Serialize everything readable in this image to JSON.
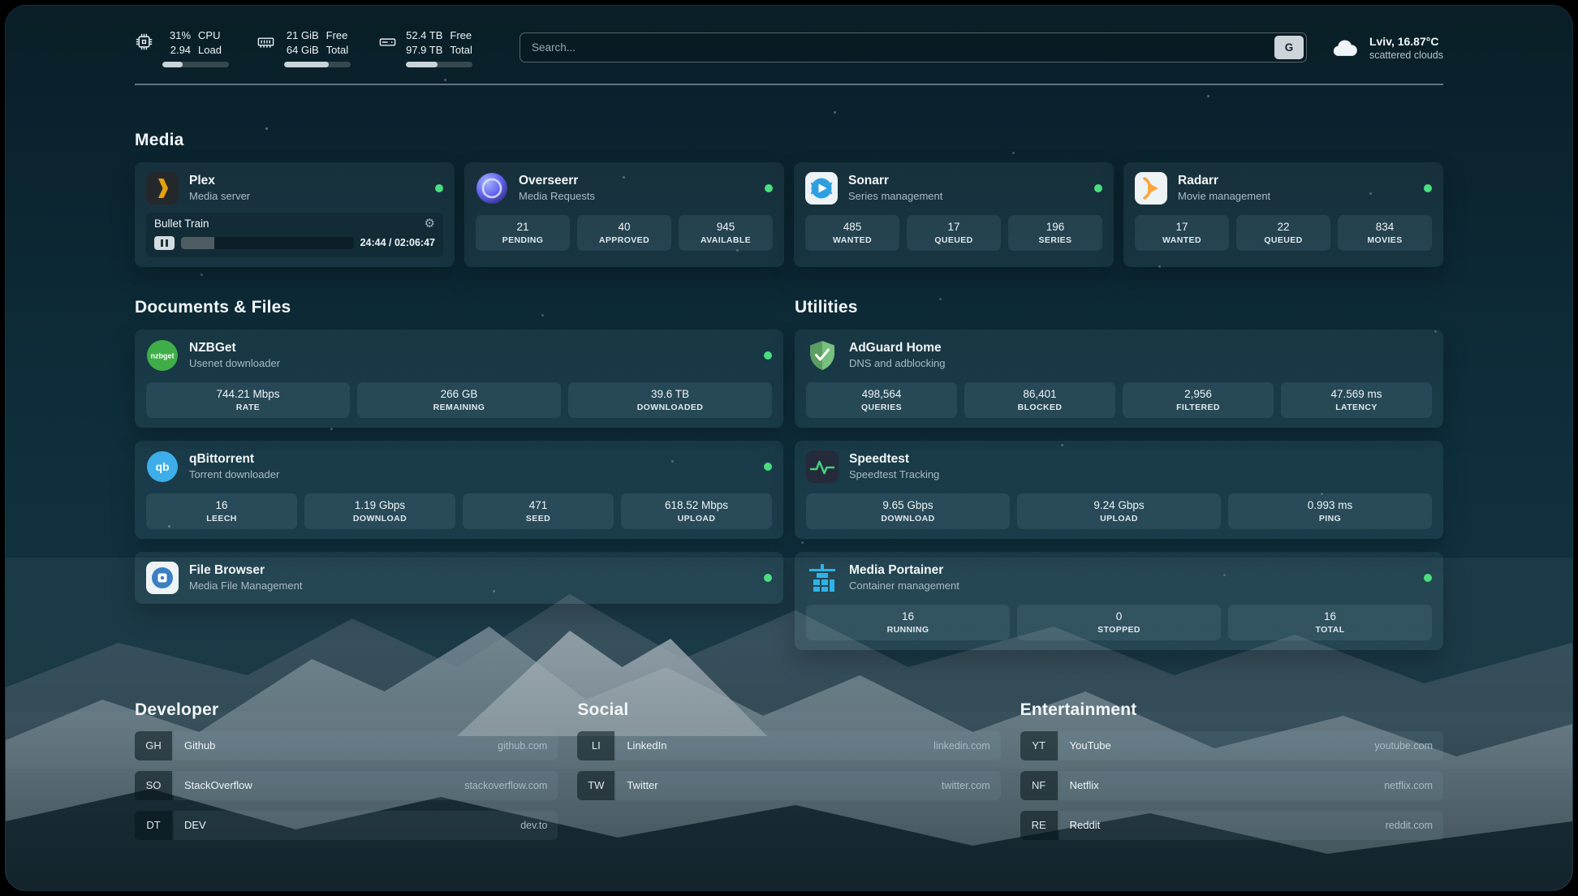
{
  "header": {
    "cpu": {
      "icon": "cpu-icon",
      "value": "31%",
      "value_label": "CPU",
      "load": "2.94",
      "load_label": "Load",
      "bar_percent": 31
    },
    "memory": {
      "icon": "memory-icon",
      "free": "21 GiB",
      "free_label": "Free",
      "total": "64 GiB",
      "total_label": "Total",
      "bar_percent": 67
    },
    "disk": {
      "icon": "disk-icon",
      "free": "52.4 TB",
      "free_label": "Free",
      "total": "97.9 TB",
      "total_label": "Total",
      "bar_percent": 47
    },
    "search": {
      "placeholder": "Search...",
      "provider_label": "G"
    },
    "weather": {
      "icon": "cloud-icon",
      "location": "Lviv, 16.87°C",
      "condition": "scattered clouds"
    }
  },
  "groups": {
    "media": {
      "title": "Media",
      "cards": [
        {
          "icon": "plex-icon",
          "name": "Plex",
          "description": "Media server",
          "status": "online",
          "player": {
            "title": "Bullet Train",
            "time": "24:44 / 02:06:47",
            "progress_percent": 19.5
          }
        },
        {
          "icon": "overseerr-icon",
          "name": "Overseerr",
          "description": "Media Requests",
          "status": "online",
          "stats": [
            {
              "value": "21",
              "label": "PENDING"
            },
            {
              "value": "40",
              "label": "APPROVED"
            },
            {
              "value": "945",
              "label": "AVAILABLE"
            }
          ]
        },
        {
          "icon": "sonarr-icon",
          "name": "Sonarr",
          "description": "Series management",
          "status": "online",
          "stats": [
            {
              "value": "485",
              "label": "WANTED"
            },
            {
              "value": "17",
              "label": "QUEUED"
            },
            {
              "value": "196",
              "label": "SERIES"
            }
          ]
        },
        {
          "icon": "radarr-icon",
          "name": "Radarr",
          "description": "Movie management",
          "status": "online",
          "stats": [
            {
              "value": "17",
              "label": "WANTED"
            },
            {
              "value": "22",
              "label": "QUEUED"
            },
            {
              "value": "834",
              "label": "MOVIES"
            }
          ]
        }
      ]
    },
    "files": {
      "title": "Documents & Files",
      "cards": [
        {
          "icon": "nzbget-icon",
          "name": "NZBGet",
          "description": "Usenet downloader",
          "status": "online",
          "stats": [
            {
              "value": "744.21 Mbps",
              "label": "RATE"
            },
            {
              "value": "266 GB",
              "label": "REMAINING"
            },
            {
              "value": "39.6 TB",
              "label": "DOWNLOADED"
            }
          ]
        },
        {
          "icon": "qbittorrent-icon",
          "name": "qBittorrent",
          "description": "Torrent downloader",
          "status": "online",
          "stats": [
            {
              "value": "16",
              "label": "LEECH"
            },
            {
              "value": "1.19 Gbps",
              "label": "DOWNLOAD"
            },
            {
              "value": "471",
              "label": "SEED"
            },
            {
              "value": "618.52 Mbps",
              "label": "UPLOAD"
            }
          ]
        },
        {
          "icon": "filebrowser-icon",
          "name": "File Browser",
          "description": "Media File Management",
          "status": "online",
          "stats": []
        }
      ]
    },
    "utilities": {
      "title": "Utilities",
      "cards": [
        {
          "icon": "adguard-icon",
          "name": "AdGuard Home",
          "description": "DNS and adblocking",
          "stats": [
            {
              "value": "498,564",
              "label": "QUERIES"
            },
            {
              "value": "86,401",
              "label": "BLOCKED"
            },
            {
              "value": "2,956",
              "label": "FILTERED"
            },
            {
              "value": "47.569 ms",
              "label": "LATENCY"
            }
          ]
        },
        {
          "icon": "speedtest-icon",
          "name": "Speedtest",
          "description": "Speedtest Tracking",
          "stats": [
            {
              "value": "9.65 Gbps",
              "label": "DOWNLOAD"
            },
            {
              "value": "9.24 Gbps",
              "label": "UPLOAD"
            },
            {
              "value": "0.993 ms",
              "label": "PING"
            }
          ]
        },
        {
          "icon": "portainer-icon",
          "name": "Media Portainer",
          "description": "Container management",
          "status": "online",
          "stats": [
            {
              "value": "16",
              "label": "RUNNING"
            },
            {
              "value": "0",
              "label": "STOPPED"
            },
            {
              "value": "16",
              "label": "TOTAL"
            }
          ]
        }
      ]
    }
  },
  "bookmarks": {
    "developer": {
      "title": "Developer",
      "items": [
        {
          "abbr": "GH",
          "name": "Github",
          "domain": "github.com"
        },
        {
          "abbr": "SO",
          "name": "StackOverflow",
          "domain": "stackoverflow.com"
        },
        {
          "abbr": "DT",
          "name": "DEV",
          "domain": "dev.to"
        }
      ]
    },
    "social": {
      "title": "Social",
      "items": [
        {
          "abbr": "LI",
          "name": "LinkedIn",
          "domain": "linkedin.com"
        },
        {
          "abbr": "TW",
          "name": "Twitter",
          "domain": "twitter.com"
        }
      ]
    },
    "entertainment": {
      "title": "Entertainment",
      "items": [
        {
          "abbr": "YT",
          "name": "YouTube",
          "domain": "youtube.com"
        },
        {
          "abbr": "NF",
          "name": "Netflix",
          "domain": "netflix.com"
        },
        {
          "abbr": "RE",
          "name": "Reddit",
          "domain": "reddit.com"
        }
      ]
    }
  },
  "colors": {
    "status_online": "#4ade80",
    "plex_accent": "#e5a00d"
  }
}
